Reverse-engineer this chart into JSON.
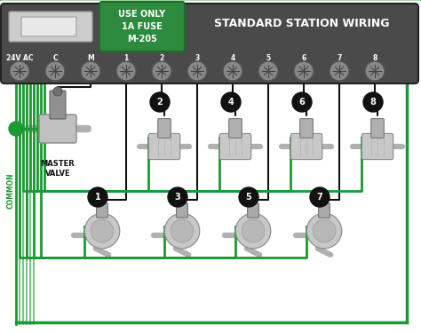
{
  "bg_color": "#ffffff",
  "outer_bg": "#c8c8c8",
  "controller_color": "#4a4a4a",
  "green_box_color": "#2d8a3e",
  "green_box_text": "USE ONLY\n1A FUSE\nM-205",
  "title_text": "STANDARD STATION WIRING",
  "terminal_labels": [
    "24V AC",
    "C",
    "M",
    "1",
    "2",
    "3",
    "4",
    "5",
    "6",
    "7",
    "8"
  ],
  "wire_green": "#1a9a32",
  "wire_black": "#111111",
  "common_label": "COMMON",
  "master_valve_label": "MASTER\nVALVE",
  "screw_color": "#888888",
  "screw_edge": "#555555"
}
